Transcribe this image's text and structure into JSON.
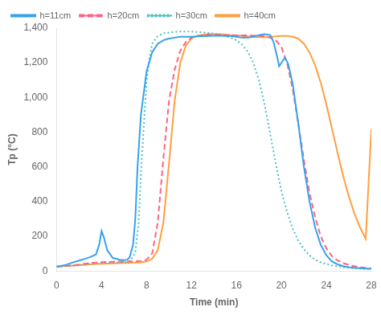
{
  "chart_data": {
    "type": "line",
    "xlabel": "Time (min)",
    "ylabel": "Tp (°C)",
    "xlim": [
      0,
      28
    ],
    "ylim": [
      0,
      1400
    ],
    "xticks": [
      0,
      4,
      8,
      12,
      16,
      20,
      24,
      28
    ],
    "yticks": [
      0,
      200,
      400,
      600,
      800,
      1000,
      1200,
      1400
    ],
    "grid": false,
    "legend": "upper left",
    "series": [
      {
        "name": "h=11cm",
        "line_style": "solid",
        "x": [
          0,
          0.3,
          0.8,
          1.5,
          2.0,
          2.5,
          3.0,
          3.5,
          3.8,
          4.0,
          4.2,
          4.5,
          5.0,
          5.3,
          5.6,
          6.0,
          6.3,
          6.5,
          6.8,
          7.0,
          7.2,
          7.5,
          8.0,
          8.5,
          9.0,
          9.5,
          10.0,
          10.5,
          11.0,
          11.5,
          12.0,
          12.5,
          13.0,
          13.5,
          14.0,
          14.5,
          15.0,
          15.5,
          16.0,
          16.5,
          17.0,
          17.5,
          18.0,
          18.5,
          19.0,
          19.3,
          19.6,
          19.8,
          20.0,
          20.3,
          20.6,
          21.0,
          21.5,
          22.0,
          22.5,
          23.0,
          23.5,
          24.0,
          24.5,
          25.0,
          25.5,
          26.0,
          26.5,
          27.0,
          27.5,
          28.0
        ],
        "values": [
          25,
          28,
          35,
          50,
          60,
          70,
          80,
          95,
          155,
          230,
          195,
          120,
          75,
          70,
          65,
          62,
          65,
          80,
          150,
          300,
          600,
          900,
          1150,
          1260,
          1310,
          1330,
          1340,
          1345,
          1350,
          1350,
          1350,
          1352,
          1354,
          1355,
          1356,
          1356,
          1355,
          1355,
          1350,
          1345,
          1345,
          1350,
          1360,
          1365,
          1360,
          1320,
          1240,
          1180,
          1200,
          1230,
          1195,
          1080,
          850,
          600,
          400,
          250,
          150,
          90,
          55,
          38,
          28,
          22,
          18,
          16,
          14,
          12
        ]
      },
      {
        "name": "h=20cm",
        "line_style": "dashed",
        "x": [
          0,
          0.5,
          1.0,
          1.5,
          2.0,
          2.5,
          3.0,
          3.5,
          4.0,
          4.5,
          5.0,
          5.5,
          6.0,
          6.5,
          7.0,
          7.5,
          8.0,
          8.5,
          9.0,
          9.5,
          10.0,
          10.5,
          11.0,
          11.5,
          12.0,
          12.5,
          13.0,
          13.5,
          14.0,
          14.5,
          15.0,
          15.5,
          16.0,
          16.5,
          17.0,
          17.5,
          18.0,
          18.5,
          19.0,
          19.5,
          20.0,
          20.5,
          21.0,
          21.5,
          22.0,
          22.5,
          23.0,
          23.5,
          24.0,
          24.5,
          25.0,
          25.5,
          26.0,
          26.5,
          27.0,
          27.5,
          28.0
        ],
        "values": [
          25,
          27,
          30,
          33,
          37,
          42,
          46,
          49,
          51,
          52,
          53,
          54,
          54,
          55,
          56,
          58,
          65,
          100,
          280,
          650,
          980,
          1160,
          1270,
          1320,
          1345,
          1355,
          1360,
          1362,
          1362,
          1362,
          1360,
          1360,
          1358,
          1358,
          1358,
          1357,
          1355,
          1352,
          1345,
          1330,
          1290,
          1200,
          1050,
          850,
          640,
          450,
          310,
          200,
          130,
          85,
          60,
          45,
          35,
          28,
          22,
          18,
          14
        ]
      },
      {
        "name": "h=30cm",
        "line_style": "dotted",
        "x": [
          0,
          0.5,
          1.0,
          1.5,
          2.0,
          2.5,
          3.0,
          3.5,
          4.0,
          4.5,
          5.0,
          5.5,
          6.0,
          6.3,
          6.6,
          7.0,
          7.3,
          7.5,
          7.8,
          8.0,
          8.3,
          8.5,
          9.0,
          9.5,
          10.0,
          10.5,
          11.0,
          11.5,
          12.0,
          12.5,
          13.0,
          13.5,
          14.0,
          14.5,
          15.0,
          15.5,
          16.0,
          16.5,
          17.0,
          17.5,
          18.0,
          18.5,
          19.0,
          19.5,
          20.0,
          20.5,
          21.0,
          21.5,
          22.0,
          22.5,
          23.0,
          23.5,
          24.0,
          24.5,
          25.0,
          25.5,
          26.0,
          26.5,
          27.0,
          27.5,
          28.0
        ],
        "values": [
          25,
          27,
          29,
          31,
          34,
          37,
          40,
          43,
          45,
          47,
          48,
          49,
          50,
          52,
          60,
          110,
          280,
          560,
          880,
          1100,
          1240,
          1310,
          1355,
          1370,
          1375,
          1378,
          1380,
          1380,
          1380,
          1378,
          1375,
          1372,
          1368,
          1362,
          1355,
          1345,
          1330,
          1305,
          1265,
          1200,
          1100,
          960,
          790,
          620,
          460,
          340,
          245,
          175,
          125,
          90,
          65,
          50,
          40,
          32,
          27,
          22,
          18,
          16,
          14,
          12,
          10
        ]
      },
      {
        "name": "h=40cm",
        "line_style": "solid",
        "x": [
          0,
          0.5,
          1.0,
          1.5,
          2.0,
          2.5,
          3.0,
          3.5,
          4.0,
          4.5,
          5.0,
          5.5,
          6.0,
          6.5,
          7.0,
          7.5,
          8.0,
          8.5,
          9.0,
          9.5,
          10.0,
          10.5,
          11.0,
          11.5,
          12.0,
          12.5,
          13.0,
          13.5,
          14.0,
          14.5,
          15.0,
          15.5,
          16.0,
          16.5,
          17.0,
          17.5,
          18.0,
          18.5,
          19.0,
          19.5,
          20.0,
          20.5,
          21.0,
          21.5,
          22.0,
          22.5,
          23.0,
          23.5,
          24.0,
          24.5,
          25.0,
          25.5,
          26.0,
          26.5,
          27.0,
          27.5,
          28.0
        ],
        "values": [
          25,
          27,
          29,
          31,
          33,
          36,
          38,
          40,
          42,
          43,
          44,
          45,
          46,
          47,
          48,
          50,
          55,
          70,
          120,
          280,
          620,
          980,
          1200,
          1300,
          1340,
          1355,
          1362,
          1365,
          1365,
          1365,
          1363,
          1360,
          1358,
          1355,
          1352,
          1350,
          1348,
          1348,
          1350,
          1352,
          1355,
          1355,
          1350,
          1340,
          1310,
          1260,
          1185,
          1085,
          960,
          820,
          680,
          545,
          430,
          330,
          250,
          185,
          820
        ]
      }
    ]
  }
}
